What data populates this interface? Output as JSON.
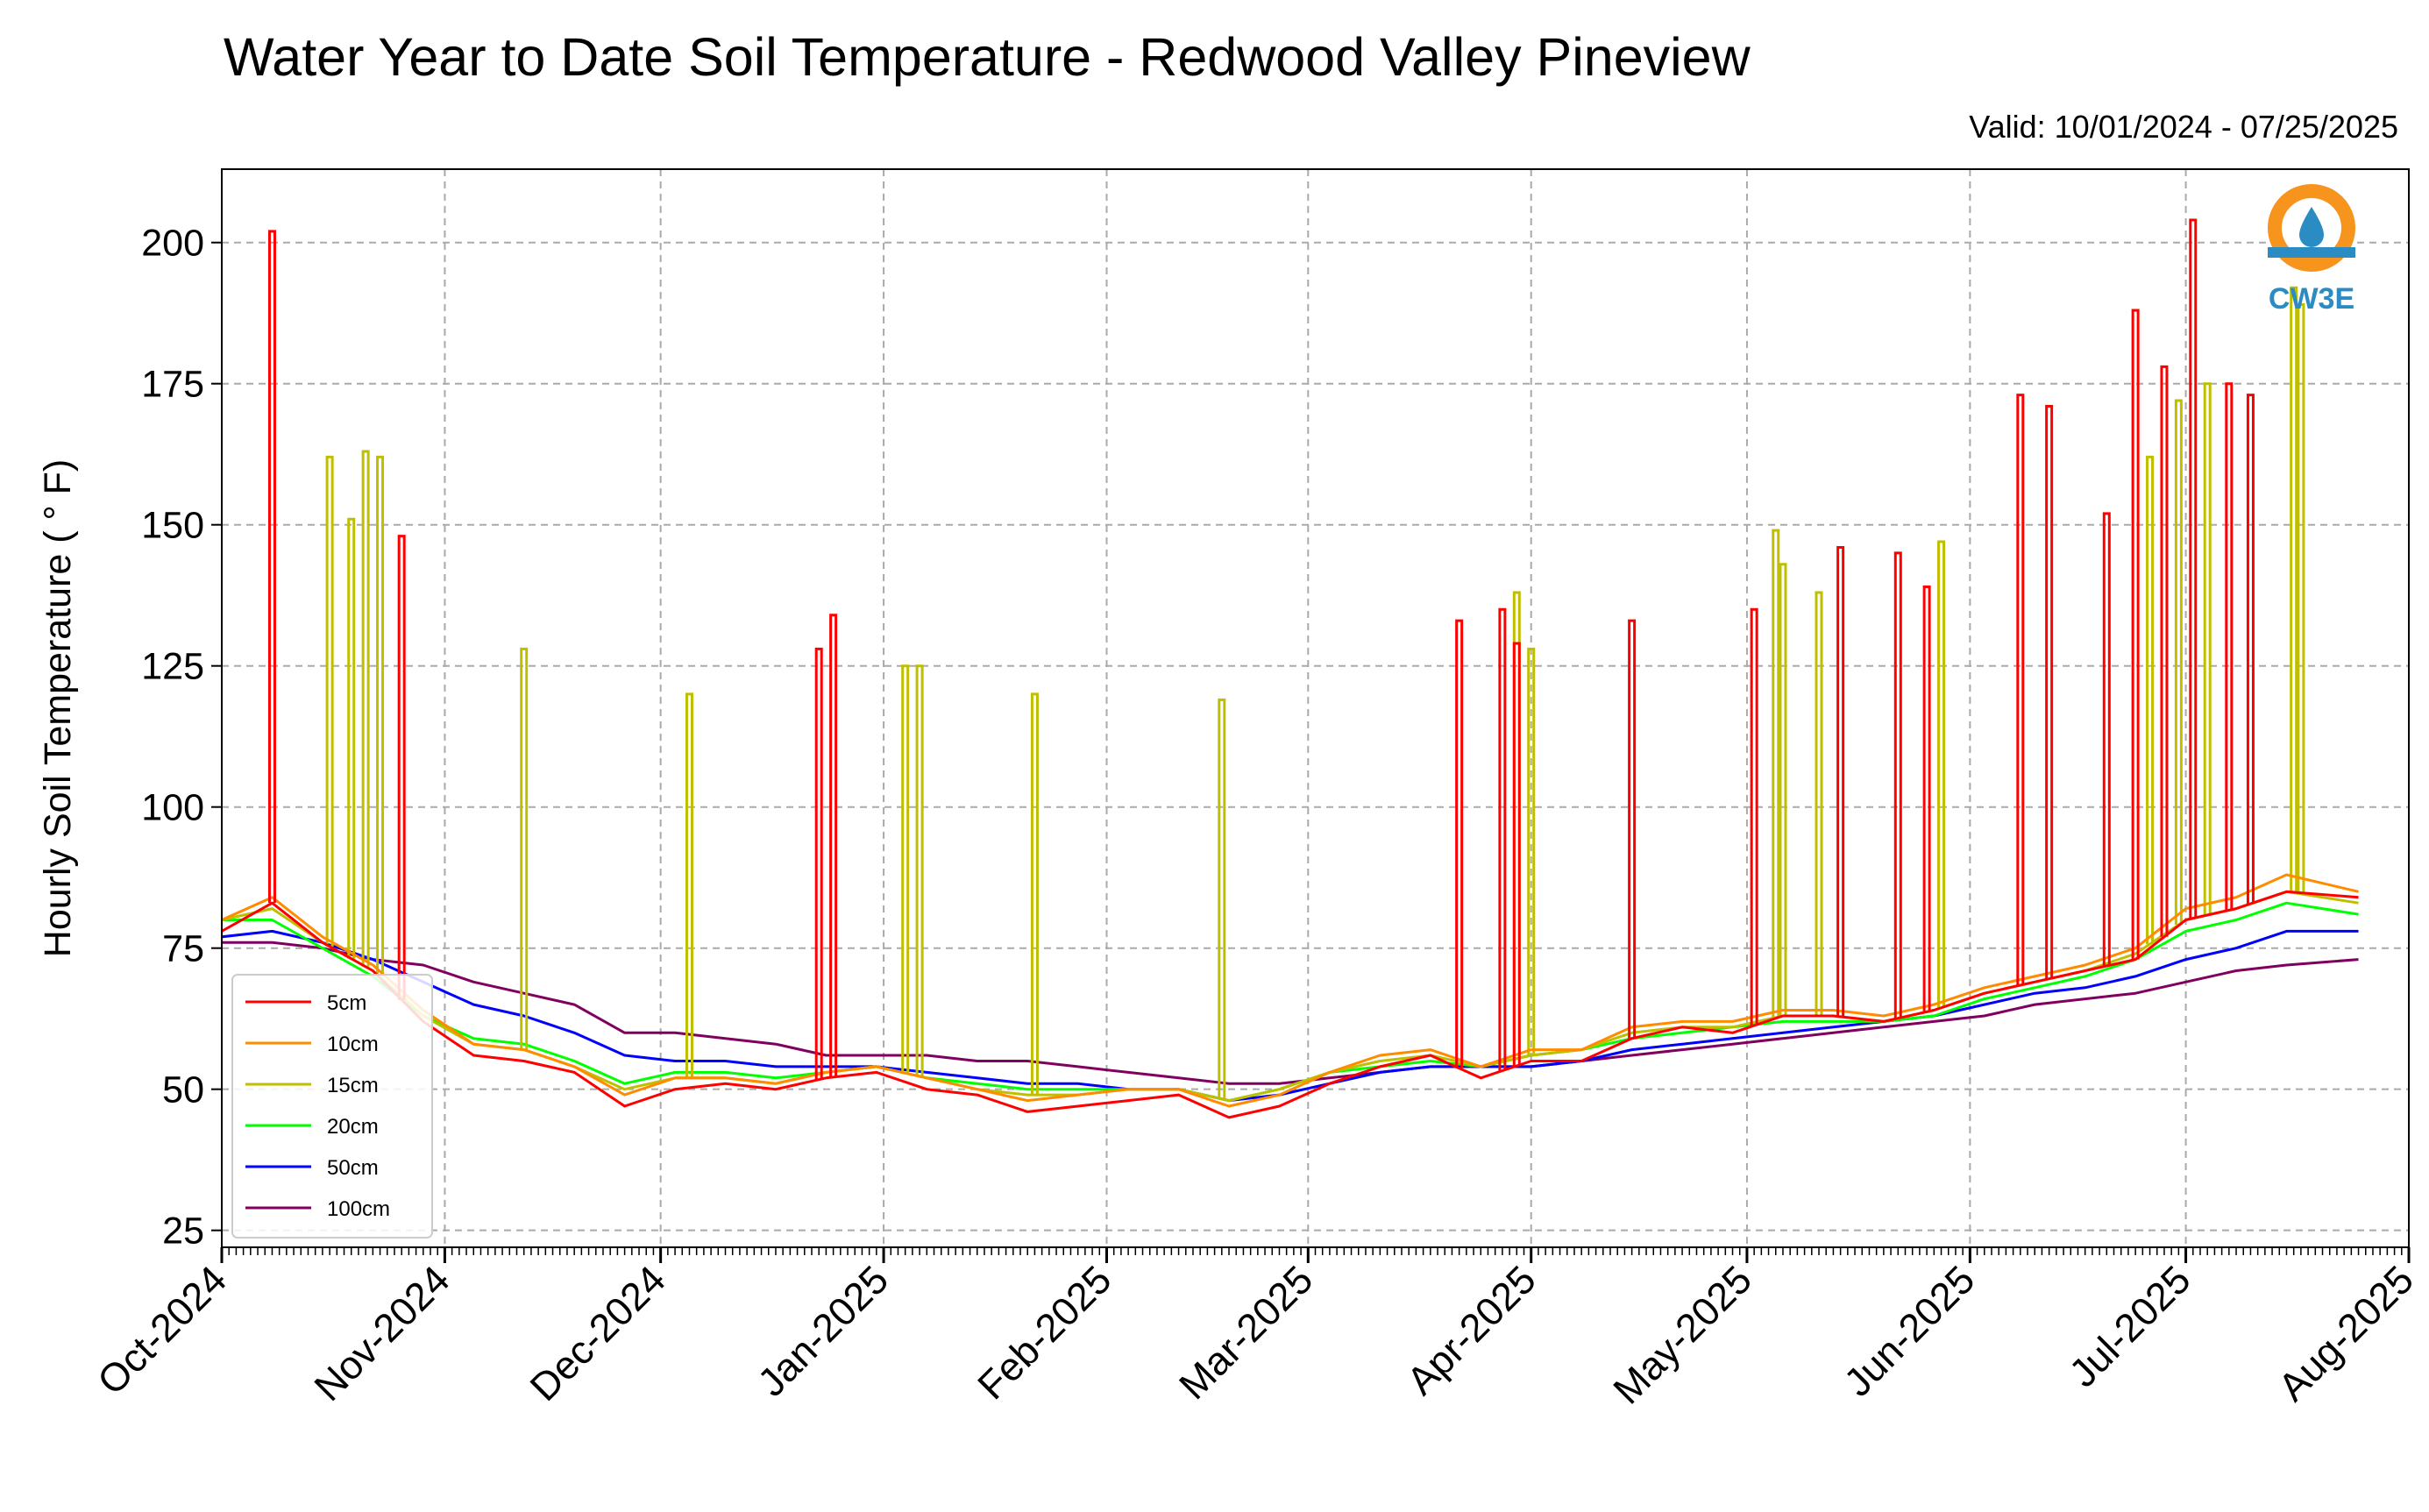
{
  "chart_data": {
    "type": "line",
    "title": "Water Year to Date Soil Temperature - Redwood Valley Pineview",
    "subtitle": "Valid: 10/01/2024 - 07/25/2025",
    "xlabel": "",
    "ylabel": "Hourly Soil Temperature ( ° F)",
    "ylim": [
      22,
      213
    ],
    "yticks": [
      25,
      50,
      75,
      100,
      125,
      150,
      175,
      200
    ],
    "xlim": [
      "2024-10-01",
      "2025-08-01"
    ],
    "xtick_labels": [
      "Oct-2024",
      "Nov-2024",
      "Dec-2024",
      "Jan-2025",
      "Feb-2025",
      "Mar-2025",
      "Apr-2025",
      "May-2025",
      "Jun-2025",
      "Jul-2025",
      "Aug-2025"
    ],
    "grid": true,
    "legend_position": "lower-left",
    "logo_text": "CW3E",
    "series": [
      {
        "name": "5cm",
        "color": "#ff0000",
        "x": [
          "2024-10-01",
          "2024-10-08",
          "2024-10-15",
          "2024-10-22",
          "2024-10-29",
          "2024-11-05",
          "2024-11-12",
          "2024-11-19",
          "2024-11-26",
          "2024-12-03",
          "2024-12-10",
          "2024-12-17",
          "2024-12-24",
          "2024-12-31",
          "2025-01-07",
          "2025-01-14",
          "2025-01-21",
          "2025-01-28",
          "2025-02-04",
          "2025-02-11",
          "2025-02-18",
          "2025-02-25",
          "2025-03-04",
          "2025-03-11",
          "2025-03-18",
          "2025-03-25",
          "2025-04-01",
          "2025-04-08",
          "2025-04-15",
          "2025-04-22",
          "2025-04-29",
          "2025-05-06",
          "2025-05-13",
          "2025-05-20",
          "2025-05-27",
          "2025-06-03",
          "2025-06-10",
          "2025-06-17",
          "2025-06-24",
          "2025-07-01",
          "2025-07-08",
          "2025-07-15",
          "2025-07-25"
        ],
        "y": [
          78,
          83,
          76,
          71,
          62,
          56,
          55,
          53,
          47,
          50,
          51,
          50,
          52,
          53,
          50,
          49,
          46,
          47,
          48,
          49,
          45,
          47,
          51,
          54,
          56,
          52,
          55,
          55,
          59,
          61,
          60,
          63,
          63,
          62,
          64,
          67,
          69,
          71,
          73,
          80,
          82,
          85,
          84
        ],
        "spikes": [
          [
            "2024-10-08",
            202
          ],
          [
            "2024-10-26",
            148
          ],
          [
            "2024-12-23",
            128
          ],
          [
            "2024-12-25",
            134
          ],
          [
            "2025-03-22",
            133
          ],
          [
            "2025-03-28",
            135
          ],
          [
            "2025-03-30",
            129
          ],
          [
            "2025-04-15",
            133
          ],
          [
            "2025-05-02",
            135
          ],
          [
            "2025-05-14",
            146
          ],
          [
            "2025-05-22",
            145
          ],
          [
            "2025-05-26",
            139
          ],
          [
            "2025-06-08",
            173
          ],
          [
            "2025-06-12",
            171
          ],
          [
            "2025-06-20",
            152
          ],
          [
            "2025-06-24",
            188
          ],
          [
            "2025-06-28",
            178
          ],
          [
            "2025-07-02",
            204
          ],
          [
            "2025-07-07",
            175
          ],
          [
            "2025-07-10",
            173
          ]
        ]
      },
      {
        "name": "10cm",
        "color": "#ff8c00",
        "x": [
          "2024-10-01",
          "2024-10-08",
          "2024-10-15",
          "2024-10-22",
          "2024-10-29",
          "2024-11-05",
          "2024-11-12",
          "2024-11-19",
          "2024-11-26",
          "2024-12-03",
          "2024-12-10",
          "2024-12-17",
          "2024-12-24",
          "2024-12-31",
          "2025-01-07",
          "2025-01-14",
          "2025-01-21",
          "2025-01-28",
          "2025-02-04",
          "2025-02-11",
          "2025-02-18",
          "2025-02-25",
          "2025-03-04",
          "2025-03-11",
          "2025-03-18",
          "2025-03-25",
          "2025-04-01",
          "2025-04-08",
          "2025-04-15",
          "2025-04-22",
          "2025-04-29",
          "2025-05-06",
          "2025-05-13",
          "2025-05-20",
          "2025-05-27",
          "2025-06-03",
          "2025-06-10",
          "2025-06-17",
          "2025-06-24",
          "2025-07-01",
          "2025-07-08",
          "2025-07-15",
          "2025-07-25"
        ],
        "y": [
          80,
          84,
          77,
          72,
          64,
          58,
          57,
          54,
          49,
          52,
          52,
          51,
          53,
          54,
          52,
          50,
          48,
          49,
          50,
          50,
          47,
          49,
          53,
          56,
          57,
          54,
          57,
          57,
          61,
          62,
          62,
          64,
          64,
          63,
          65,
          68,
          70,
          72,
          75,
          82,
          84,
          88,
          85
        ],
        "spikes": []
      },
      {
        "name": "15cm",
        "color": "#bfbf00",
        "x": [
          "2024-10-01",
          "2024-10-08",
          "2024-10-15",
          "2024-10-22",
          "2024-10-29",
          "2024-11-05",
          "2024-11-12",
          "2024-11-19",
          "2024-11-26",
          "2024-12-03",
          "2024-12-10",
          "2024-12-17",
          "2024-12-24",
          "2024-12-31",
          "2025-01-07",
          "2025-01-14",
          "2025-01-21",
          "2025-01-28",
          "2025-02-04",
          "2025-02-11",
          "2025-02-18",
          "2025-02-25",
          "2025-03-04",
          "2025-03-11",
          "2025-03-18",
          "2025-03-25",
          "2025-04-01",
          "2025-04-08",
          "2025-04-15",
          "2025-04-22",
          "2025-04-29",
          "2025-05-06",
          "2025-05-13",
          "2025-05-20",
          "2025-05-27",
          "2025-06-03",
          "2025-06-10",
          "2025-06-17",
          "2025-06-24",
          "2025-07-01",
          "2025-07-08",
          "2025-07-15",
          "2025-07-25"
        ],
        "y": [
          80,
          82,
          76,
          71,
          63,
          58,
          57,
          54,
          50,
          52,
          52,
          51,
          53,
          54,
          52,
          50,
          49,
          49,
          50,
          50,
          48,
          50,
          53,
          55,
          56,
          54,
          56,
          57,
          60,
          61,
          61,
          63,
          63,
          62,
          64,
          67,
          69,
          71,
          74,
          80,
          82,
          85,
          83
        ],
        "spikes": [
          [
            "2024-10-16",
            162
          ],
          [
            "2024-10-19",
            151
          ],
          [
            "2024-10-21",
            163
          ],
          [
            "2024-10-23",
            162
          ],
          [
            "2024-11-12",
            128
          ],
          [
            "2024-12-05",
            120
          ],
          [
            "2025-01-04",
            125
          ],
          [
            "2025-01-06",
            125
          ],
          [
            "2025-01-22",
            120
          ],
          [
            "2025-02-17",
            119
          ],
          [
            "2025-03-30",
            138
          ],
          [
            "2025-04-01",
            128
          ],
          [
            "2025-05-05",
            149
          ],
          [
            "2025-05-06",
            143
          ],
          [
            "2025-05-11",
            138
          ],
          [
            "2025-05-28",
            147
          ],
          [
            "2025-06-26",
            162
          ],
          [
            "2025-06-30",
            172
          ],
          [
            "2025-07-04",
            175
          ],
          [
            "2025-07-16",
            192
          ],
          [
            "2025-07-17",
            189
          ]
        ]
      },
      {
        "name": "20cm",
        "color": "#00ff00",
        "x": [
          "2024-10-01",
          "2024-10-08",
          "2024-10-15",
          "2024-10-22",
          "2024-10-29",
          "2024-11-05",
          "2024-11-12",
          "2024-11-19",
          "2024-11-26",
          "2024-12-03",
          "2024-12-10",
          "2024-12-17",
          "2024-12-24",
          "2024-12-31",
          "2025-01-07",
          "2025-01-14",
          "2025-01-21",
          "2025-01-28",
          "2025-02-04",
          "2025-02-11",
          "2025-02-18",
          "2025-02-25",
          "2025-03-04",
          "2025-03-11",
          "2025-03-18",
          "2025-03-25",
          "2025-04-01",
          "2025-04-08",
          "2025-04-15",
          "2025-04-22",
          "2025-04-29",
          "2025-05-06",
          "2025-05-13",
          "2025-05-20",
          "2025-05-27",
          "2025-06-03",
          "2025-06-10",
          "2025-06-17",
          "2025-06-24",
          "2025-07-01",
          "2025-07-08",
          "2025-07-15",
          "2025-07-25"
        ],
        "y": [
          80,
          80,
          75,
          70,
          63,
          59,
          58,
          55,
          51,
          53,
          53,
          52,
          53,
          54,
          52,
          51,
          50,
          50,
          50,
          50,
          48,
          50,
          53,
          54,
          55,
          54,
          56,
          57,
          59,
          60,
          61,
          62,
          62,
          62,
          63,
          66,
          68,
          70,
          73,
          78,
          80,
          83,
          81
        ],
        "spikes": []
      },
      {
        "name": "50cm",
        "color": "#0000ff",
        "x": [
          "2024-10-01",
          "2024-10-08",
          "2024-10-15",
          "2024-10-22",
          "2024-10-29",
          "2024-11-05",
          "2024-11-12",
          "2024-11-19",
          "2024-11-26",
          "2024-12-03",
          "2024-12-10",
          "2024-12-17",
          "2024-12-24",
          "2024-12-31",
          "2025-01-07",
          "2025-01-14",
          "2025-01-21",
          "2025-01-28",
          "2025-02-04",
          "2025-02-11",
          "2025-02-18",
          "2025-02-25",
          "2025-03-04",
          "2025-03-11",
          "2025-03-18",
          "2025-03-25",
          "2025-04-01",
          "2025-04-08",
          "2025-04-15",
          "2025-04-22",
          "2025-04-29",
          "2025-05-06",
          "2025-05-13",
          "2025-05-20",
          "2025-05-27",
          "2025-06-03",
          "2025-06-10",
          "2025-06-17",
          "2025-06-24",
          "2025-07-01",
          "2025-07-08",
          "2025-07-15",
          "2025-07-25"
        ],
        "y": [
          77,
          78,
          76,
          73,
          69,
          65,
          63,
          60,
          56,
          55,
          55,
          54,
          54,
          54,
          53,
          52,
          51,
          51,
          50,
          50,
          48,
          49,
          51,
          53,
          54,
          54,
          54,
          55,
          57,
          58,
          59,
          60,
          61,
          62,
          63,
          65,
          67,
          68,
          70,
          73,
          75,
          78,
          78
        ],
        "spikes": []
      },
      {
        "name": "100cm",
        "color": "#800060",
        "x": [
          "2024-10-01",
          "2024-10-08",
          "2024-10-15",
          "2024-10-22",
          "2024-10-29",
          "2024-11-05",
          "2024-11-12",
          "2024-11-19",
          "2024-11-26",
          "2024-12-03",
          "2024-12-10",
          "2024-12-17",
          "2024-12-24",
          "2024-12-31",
          "2025-01-07",
          "2025-01-14",
          "2025-01-21",
          "2025-01-28",
          "2025-02-04",
          "2025-02-11",
          "2025-02-18",
          "2025-02-25",
          "2025-03-04",
          "2025-03-11",
          "2025-03-18",
          "2025-03-25",
          "2025-04-01",
          "2025-04-08",
          "2025-04-15",
          "2025-04-22",
          "2025-04-29",
          "2025-05-06",
          "2025-05-13",
          "2025-05-20",
          "2025-05-27",
          "2025-06-03",
          "2025-06-10",
          "2025-06-17",
          "2025-06-24",
          "2025-07-01",
          "2025-07-08",
          "2025-07-15",
          "2025-07-25"
        ],
        "y": [
          76,
          76,
          75,
          73,
          72,
          69,
          67,
          65,
          60,
          60,
          59,
          58,
          56,
          56,
          56,
          55,
          55,
          54,
          53,
          52,
          51,
          51,
          52,
          53,
          54,
          54,
          54,
          55,
          56,
          57,
          58,
          59,
          60,
          61,
          62,
          63,
          65,
          66,
          67,
          69,
          71,
          72,
          73
        ],
        "spikes": []
      }
    ]
  }
}
